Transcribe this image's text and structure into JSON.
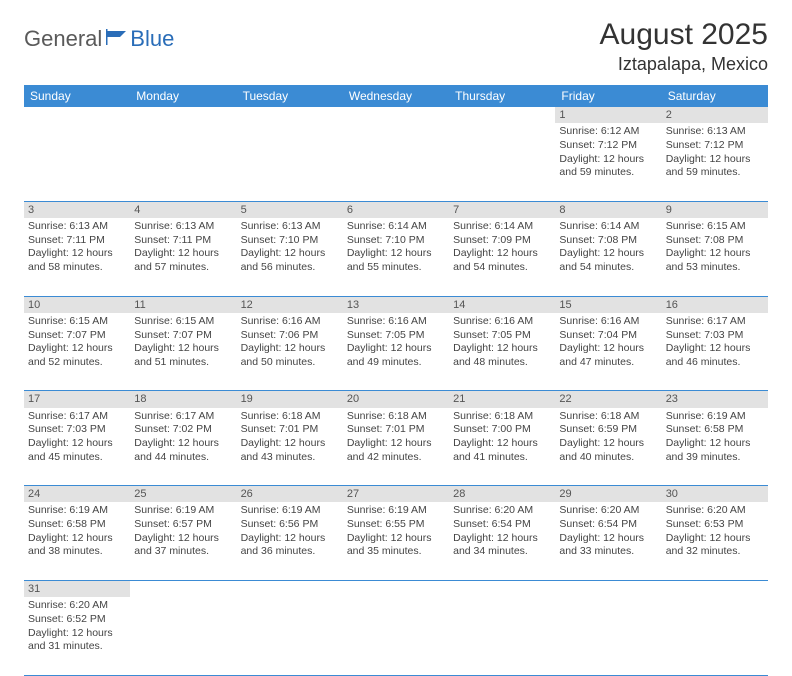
{
  "logo": {
    "text1": "General",
    "text2": "Blue"
  },
  "header": {
    "title": "August 2025",
    "location": "Iztapalapa, Mexico"
  },
  "colors": {
    "headerBg": "#3b8bd4",
    "dayNumBg": "#e2e2e2",
    "rowBorder": "#3b8bd4"
  },
  "weekdays": [
    "Sunday",
    "Monday",
    "Tuesday",
    "Wednesday",
    "Thursday",
    "Friday",
    "Saturday"
  ],
  "weeks": [
    [
      null,
      null,
      null,
      null,
      null,
      {
        "d": "1",
        "sr": "Sunrise: 6:12 AM",
        "ss": "Sunset: 7:12 PM",
        "dl1": "Daylight: 12 hours",
        "dl2": "and 59 minutes."
      },
      {
        "d": "2",
        "sr": "Sunrise: 6:13 AM",
        "ss": "Sunset: 7:12 PM",
        "dl1": "Daylight: 12 hours",
        "dl2": "and 59 minutes."
      }
    ],
    [
      {
        "d": "3",
        "sr": "Sunrise: 6:13 AM",
        "ss": "Sunset: 7:11 PM",
        "dl1": "Daylight: 12 hours",
        "dl2": "and 58 minutes."
      },
      {
        "d": "4",
        "sr": "Sunrise: 6:13 AM",
        "ss": "Sunset: 7:11 PM",
        "dl1": "Daylight: 12 hours",
        "dl2": "and 57 minutes."
      },
      {
        "d": "5",
        "sr": "Sunrise: 6:13 AM",
        "ss": "Sunset: 7:10 PM",
        "dl1": "Daylight: 12 hours",
        "dl2": "and 56 minutes."
      },
      {
        "d": "6",
        "sr": "Sunrise: 6:14 AM",
        "ss": "Sunset: 7:10 PM",
        "dl1": "Daylight: 12 hours",
        "dl2": "and 55 minutes."
      },
      {
        "d": "7",
        "sr": "Sunrise: 6:14 AM",
        "ss": "Sunset: 7:09 PM",
        "dl1": "Daylight: 12 hours",
        "dl2": "and 54 minutes."
      },
      {
        "d": "8",
        "sr": "Sunrise: 6:14 AM",
        "ss": "Sunset: 7:08 PM",
        "dl1": "Daylight: 12 hours",
        "dl2": "and 54 minutes."
      },
      {
        "d": "9",
        "sr": "Sunrise: 6:15 AM",
        "ss": "Sunset: 7:08 PM",
        "dl1": "Daylight: 12 hours",
        "dl2": "and 53 minutes."
      }
    ],
    [
      {
        "d": "10",
        "sr": "Sunrise: 6:15 AM",
        "ss": "Sunset: 7:07 PM",
        "dl1": "Daylight: 12 hours",
        "dl2": "and 52 minutes."
      },
      {
        "d": "11",
        "sr": "Sunrise: 6:15 AM",
        "ss": "Sunset: 7:07 PM",
        "dl1": "Daylight: 12 hours",
        "dl2": "and 51 minutes."
      },
      {
        "d": "12",
        "sr": "Sunrise: 6:16 AM",
        "ss": "Sunset: 7:06 PM",
        "dl1": "Daylight: 12 hours",
        "dl2": "and 50 minutes."
      },
      {
        "d": "13",
        "sr": "Sunrise: 6:16 AM",
        "ss": "Sunset: 7:05 PM",
        "dl1": "Daylight: 12 hours",
        "dl2": "and 49 minutes."
      },
      {
        "d": "14",
        "sr": "Sunrise: 6:16 AM",
        "ss": "Sunset: 7:05 PM",
        "dl1": "Daylight: 12 hours",
        "dl2": "and 48 minutes."
      },
      {
        "d": "15",
        "sr": "Sunrise: 6:16 AM",
        "ss": "Sunset: 7:04 PM",
        "dl1": "Daylight: 12 hours",
        "dl2": "and 47 minutes."
      },
      {
        "d": "16",
        "sr": "Sunrise: 6:17 AM",
        "ss": "Sunset: 7:03 PM",
        "dl1": "Daylight: 12 hours",
        "dl2": "and 46 minutes."
      }
    ],
    [
      {
        "d": "17",
        "sr": "Sunrise: 6:17 AM",
        "ss": "Sunset: 7:03 PM",
        "dl1": "Daylight: 12 hours",
        "dl2": "and 45 minutes."
      },
      {
        "d": "18",
        "sr": "Sunrise: 6:17 AM",
        "ss": "Sunset: 7:02 PM",
        "dl1": "Daylight: 12 hours",
        "dl2": "and 44 minutes."
      },
      {
        "d": "19",
        "sr": "Sunrise: 6:18 AM",
        "ss": "Sunset: 7:01 PM",
        "dl1": "Daylight: 12 hours",
        "dl2": "and 43 minutes."
      },
      {
        "d": "20",
        "sr": "Sunrise: 6:18 AM",
        "ss": "Sunset: 7:01 PM",
        "dl1": "Daylight: 12 hours",
        "dl2": "and 42 minutes."
      },
      {
        "d": "21",
        "sr": "Sunrise: 6:18 AM",
        "ss": "Sunset: 7:00 PM",
        "dl1": "Daylight: 12 hours",
        "dl2": "and 41 minutes."
      },
      {
        "d": "22",
        "sr": "Sunrise: 6:18 AM",
        "ss": "Sunset: 6:59 PM",
        "dl1": "Daylight: 12 hours",
        "dl2": "and 40 minutes."
      },
      {
        "d": "23",
        "sr": "Sunrise: 6:19 AM",
        "ss": "Sunset: 6:58 PM",
        "dl1": "Daylight: 12 hours",
        "dl2": "and 39 minutes."
      }
    ],
    [
      {
        "d": "24",
        "sr": "Sunrise: 6:19 AM",
        "ss": "Sunset: 6:58 PM",
        "dl1": "Daylight: 12 hours",
        "dl2": "and 38 minutes."
      },
      {
        "d": "25",
        "sr": "Sunrise: 6:19 AM",
        "ss": "Sunset: 6:57 PM",
        "dl1": "Daylight: 12 hours",
        "dl2": "and 37 minutes."
      },
      {
        "d": "26",
        "sr": "Sunrise: 6:19 AM",
        "ss": "Sunset: 6:56 PM",
        "dl1": "Daylight: 12 hours",
        "dl2": "and 36 minutes."
      },
      {
        "d": "27",
        "sr": "Sunrise: 6:19 AM",
        "ss": "Sunset: 6:55 PM",
        "dl1": "Daylight: 12 hours",
        "dl2": "and 35 minutes."
      },
      {
        "d": "28",
        "sr": "Sunrise: 6:20 AM",
        "ss": "Sunset: 6:54 PM",
        "dl1": "Daylight: 12 hours",
        "dl2": "and 34 minutes."
      },
      {
        "d": "29",
        "sr": "Sunrise: 6:20 AM",
        "ss": "Sunset: 6:54 PM",
        "dl1": "Daylight: 12 hours",
        "dl2": "and 33 minutes."
      },
      {
        "d": "30",
        "sr": "Sunrise: 6:20 AM",
        "ss": "Sunset: 6:53 PM",
        "dl1": "Daylight: 12 hours",
        "dl2": "and 32 minutes."
      }
    ],
    [
      {
        "d": "31",
        "sr": "Sunrise: 6:20 AM",
        "ss": "Sunset: 6:52 PM",
        "dl1": "Daylight: 12 hours",
        "dl2": "and 31 minutes."
      },
      null,
      null,
      null,
      null,
      null,
      null
    ]
  ]
}
